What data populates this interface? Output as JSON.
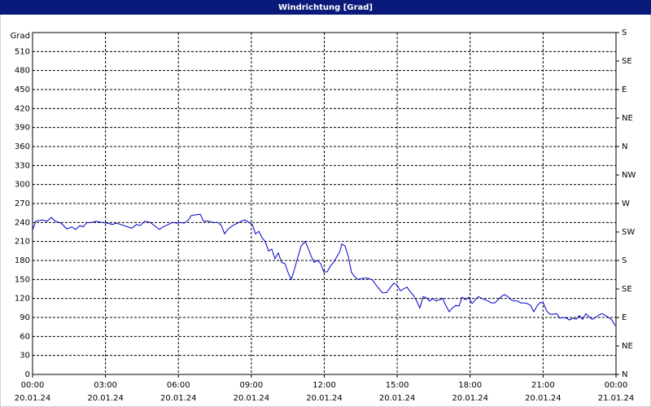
{
  "chart_data": {
    "type": "line",
    "title": "Windrichtung [Grad]",
    "y_axis_label": "Grad",
    "x": [
      0.0,
      0.13,
      0.4,
      0.6,
      0.77,
      0.94,
      1.17,
      1.41,
      1.61,
      1.77,
      1.94,
      2.08,
      2.24,
      2.41,
      2.61,
      2.85,
      3.08,
      3.28,
      3.45,
      3.62,
      3.85,
      4.08,
      4.28,
      4.42,
      4.62,
      4.85,
      5.02,
      5.22,
      5.36,
      5.59,
      5.76,
      5.96,
      6.09,
      6.23,
      6.39,
      6.53,
      6.69,
      6.9,
      7.03,
      7.23,
      7.43,
      7.63,
      7.77,
      7.9,
      8.03,
      8.23,
      8.44,
      8.57,
      8.74,
      8.9,
      9.04,
      9.17,
      9.31,
      9.44,
      9.57,
      9.71,
      9.84,
      9.97,
      10.11,
      10.24,
      10.38,
      10.51,
      10.64,
      10.78,
      10.91,
      11.05,
      11.21,
      11.31,
      11.45,
      11.58,
      11.72,
      11.85,
      11.98,
      12.12,
      12.25,
      12.38,
      12.52,
      12.65,
      12.72,
      12.85,
      12.99,
      13.12,
      13.26,
      13.39,
      13.59,
      13.79,
      13.99,
      14.13,
      14.26,
      14.39,
      14.56,
      14.73,
      14.86,
      15.0,
      15.13,
      15.26,
      15.4,
      15.53,
      15.67,
      15.8,
      15.93,
      16.07,
      16.2,
      16.33,
      16.47,
      16.6,
      16.74,
      16.87,
      17.0,
      17.14,
      17.27,
      17.41,
      17.54,
      17.67,
      17.81,
      17.94,
      18.08,
      18.21,
      18.34,
      18.48,
      18.61,
      18.74,
      18.88,
      19.01,
      19.15,
      19.28,
      19.41,
      19.55,
      19.68,
      19.82,
      19.95,
      20.08,
      20.22,
      20.35,
      20.49,
      20.62,
      20.75,
      20.89,
      21.02,
      21.15,
      21.29,
      21.42,
      21.56,
      21.69,
      21.82,
      21.96,
      22.09,
      22.23,
      22.36,
      22.49,
      22.63,
      22.76,
      22.89,
      23.03,
      23.16,
      23.3,
      23.43,
      23.57,
      23.7,
      23.83,
      23.97
    ],
    "series": [
      {
        "name": "Windrichtung",
        "color": "#0000cc",
        "values": [
          228,
          242,
          244,
          242,
          248,
          242,
          239,
          230,
          233,
          229,
          235,
          233,
          240,
          240,
          242,
          240,
          239,
          237,
          239,
          237,
          234,
          231,
          237,
          235,
          242,
          240,
          235,
          229,
          233,
          237,
          240,
          239,
          240,
          239,
          243,
          251,
          252,
          253,
          242,
          242,
          240,
          240,
          235,
          222,
          229,
          235,
          239,
          242,
          244,
          240,
          237,
          222,
          226,
          216,
          210,
          195,
          198,
          183,
          192,
          177,
          175,
          161,
          150,
          167,
          185,
          203,
          210,
          202,
          188,
          177,
          180,
          175,
          162,
          162,
          171,
          177,
          186,
          195,
          206,
          203,
          186,
          161,
          154,
          150,
          152,
          152,
          149,
          141,
          135,
          129,
          129,
          138,
          144,
          141,
          132,
          135,
          138,
          131,
          125,
          116,
          105,
          123,
          121,
          116,
          120,
          116,
          118,
          120,
          109,
          99,
          105,
          109,
          108,
          122,
          118,
          122,
          112,
          118,
          123,
          120,
          118,
          116,
          113,
          113,
          118,
          123,
          126,
          123,
          118,
          116,
          116,
          113,
          113,
          112,
          109,
          99,
          108,
          114,
          112,
          100,
          95,
          95,
          96,
          89,
          90,
          89,
          86,
          89,
          87,
          93,
          87,
          96,
          91,
          87,
          90,
          94,
          96,
          93,
          90,
          86,
          77
        ]
      }
    ],
    "xlim": [
      0,
      24
    ],
    "xticks": [
      {
        "value": 0,
        "label": "00:00"
      },
      {
        "value": 3,
        "label": "03:00"
      },
      {
        "value": 6,
        "label": "06:00"
      },
      {
        "value": 9,
        "label": "09:00"
      },
      {
        "value": 12,
        "label": "12:00"
      },
      {
        "value": 15,
        "label": "15:00"
      },
      {
        "value": 18,
        "label": "18:00"
      },
      {
        "value": 21,
        "label": "21:00"
      },
      {
        "value": 24,
        "label": "00:00"
      }
    ],
    "xtick_dates": [
      "20.01.24",
      "20.01.24",
      "20.01.24",
      "20.01.24",
      "20.01.24",
      "20.01.24",
      "20.01.24",
      "20.01.24",
      "21.01.24"
    ],
    "ylim": [
      0,
      540
    ],
    "yticks": [
      0,
      30,
      60,
      90,
      120,
      150,
      180,
      210,
      240,
      270,
      300,
      330,
      360,
      390,
      420,
      450,
      480,
      510
    ],
    "y2lim": [
      0,
      540
    ],
    "y2ticks": [
      {
        "value": 0,
        "label": "N"
      },
      {
        "value": 45,
        "label": "NE"
      },
      {
        "value": 90,
        "label": "E"
      },
      {
        "value": 135,
        "label": "SE"
      },
      {
        "value": 180,
        "label": "S"
      },
      {
        "value": 225,
        "label": "SW"
      },
      {
        "value": 270,
        "label": "W"
      },
      {
        "value": 315,
        "label": "NW"
      },
      {
        "value": 360,
        "label": "N"
      },
      {
        "value": 405,
        "label": "NE"
      },
      {
        "value": 450,
        "label": "E"
      },
      {
        "value": 495,
        "label": "SE"
      },
      {
        "value": 540,
        "label": "S"
      }
    ],
    "grid": true
  }
}
